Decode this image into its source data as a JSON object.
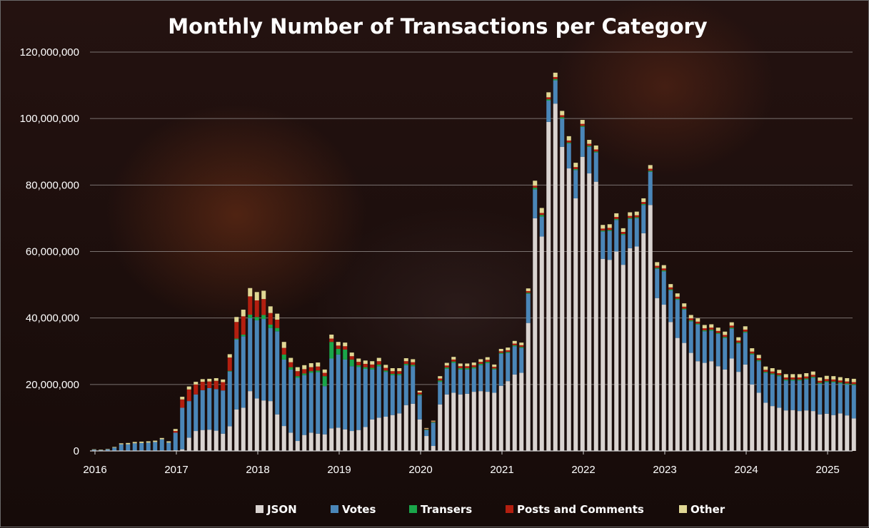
{
  "chart_data": {
    "type": "bar",
    "stacked": true,
    "title": "Monthly Number of Transactions per Category",
    "xlabel": "",
    "ylabel": "",
    "ylim": [
      0,
      120000000
    ],
    "yticks": [
      0,
      20000000,
      40000000,
      60000000,
      80000000,
      100000000,
      120000000
    ],
    "ytick_labels": [
      "0",
      "20,000,000",
      "40,000,000",
      "60,000,000",
      "80,000,000",
      "100,000,000",
      "120,000,000"
    ],
    "xticks": [
      "2016",
      "2017",
      "2018",
      "2019",
      "2020",
      "2021",
      "2022",
      "2023",
      "2024",
      "2025"
    ],
    "grid": true,
    "legend_position": "bottom",
    "start_month": "2016-01",
    "series": [
      {
        "name": "JSON",
        "color": "#d9d3d0",
        "values": [
          0,
          0,
          0,
          0,
          0,
          0,
          0,
          0,
          0,
          0,
          0,
          0,
          200000,
          500000,
          4000000,
          6000000,
          6300000,
          6400000,
          6100000,
          5200000,
          7400000,
          12500000,
          13000000,
          18000000,
          15800000,
          15200000,
          15000000,
          11000000,
          7500000,
          5500000,
          3000000,
          4800000,
          5500000,
          5200000,
          5000000,
          6800000,
          7000000,
          6500000,
          6000000,
          6300000,
          7200000,
          9500000,
          10000000,
          10300000,
          10800000,
          11300000,
          13800000,
          14200000,
          9500000,
          4500000,
          1500000,
          14000000,
          17000000,
          17500000,
          17000000,
          17200000,
          17800000,
          18000000,
          17800000,
          17500000,
          19600000,
          21000000,
          23000000,
          23500000,
          38500000,
          70000000,
          64500000,
          99000000,
          104500000,
          91500000,
          85000000,
          76000000,
          88500000,
          83500000,
          81000000,
          57800000,
          57500000,
          60000000,
          56000000,
          61000000,
          61500000,
          65500000,
          74000000,
          46000000,
          44000000,
          38800000,
          34000000,
          32500000,
          29500000,
          27000000,
          26500000,
          27000000,
          25500000,
          24500000,
          27800000,
          23800000,
          26000000,
          20000000,
          17500000,
          14500000,
          13500000,
          13000000,
          12200000,
          12300000,
          12000000,
          12200000,
          12000000,
          11000000,
          11200000,
          10800000,
          11300000,
          10700000,
          9800000
        ]
      },
      {
        "name": "Votes",
        "color": "#4a86b8",
        "values": [
          400000,
          300000,
          500000,
          1000000,
          2000000,
          2000000,
          2300000,
          2400000,
          2500000,
          2700000,
          3500000,
          2500000,
          5300000,
          12500000,
          11000000,
          11000000,
          12000000,
          12500000,
          12500000,
          13000000,
          16500000,
          21000000,
          21500000,
          22000000,
          23500000,
          24500000,
          22000000,
          25000000,
          20000000,
          19000000,
          19000000,
          18000000,
          18000000,
          18500000,
          14500000,
          21000000,
          22000000,
          21000000,
          19500000,
          19000000,
          17500000,
          15000000,
          15500000,
          13500000,
          12000000,
          11500000,
          12000000,
          11300000,
          7200000,
          1800000,
          7000000,
          6800000,
          7700000,
          9000000,
          7500000,
          7300000,
          7000000,
          7800000,
          8600000,
          7000000,
          9600000,
          8500000,
          8500000,
          7500000,
          8800000,
          8700000,
          6000000,
          6400000,
          7000000,
          8500000,
          7500000,
          8500000,
          9000000,
          8000000,
          8800000,
          8200000,
          8700000,
          9500000,
          9000000,
          8800000,
          8500000,
          8500000,
          10000000,
          8800000,
          10000000,
          9500000,
          11500000,
          10000000,
          9500000,
          11000000,
          9500000,
          9200000,
          9700000,
          9500000,
          9000000,
          8500000,
          9600000,
          9000000,
          9500000,
          9000000,
          9500000,
          9500000,
          9000000,
          8900000,
          9200000,
          9300000,
          10000000,
          9200000,
          9500000,
          9800000,
          9000000,
          9300000,
          10000000
        ]
      },
      {
        "name": "Transers",
        "color": "#1aa64a",
        "values": [
          0,
          0,
          0,
          0,
          0,
          0,
          0,
          0,
          0,
          0,
          0,
          0,
          0,
          0,
          0,
          0,
          0,
          0,
          0,
          0,
          200000,
          300000,
          500000,
          1000000,
          1000000,
          1200000,
          1000000,
          1000000,
          1500000,
          700000,
          500000,
          500000,
          500000,
          500000,
          3000000,
          5000000,
          1700000,
          3000000,
          2000000,
          500000,
          500000,
          500000,
          500000,
          400000,
          400000,
          400000,
          400000,
          400000,
          300000,
          200000,
          200000,
          400000,
          400000,
          400000,
          400000,
          400000,
          400000,
          400000,
          400000,
          300000,
          300000,
          300000,
          300000,
          300000,
          300000,
          500000,
          500000,
          400000,
          400000,
          400000,
          300000,
          300000,
          300000,
          300000,
          300000,
          300000,
          300000,
          300000,
          300000,
          300000,
          300000,
          300000,
          300000,
          300000,
          300000,
          300000,
          300000,
          300000,
          300000,
          300000,
          300000,
          300000,
          300000,
          300000,
          300000,
          300000,
          300000,
          300000,
          300000,
          300000,
          300000,
          300000,
          300000,
          300000,
          300000,
          300000,
          300000,
          300000,
          300000,
          300000,
          300000,
          300000,
          300000
        ]
      },
      {
        "name": "Posts and Comments",
        "color": "#b31f10",
        "values": [
          0,
          0,
          0,
          0,
          0,
          0,
          0,
          0,
          0,
          0,
          0,
          0,
          500000,
          2500000,
          3500000,
          3000000,
          2500000,
          2000000,
          2500000,
          2500000,
          4000000,
          5000000,
          5500000,
          5500000,
          5000000,
          4800000,
          3500000,
          2500000,
          2000000,
          1500000,
          1500000,
          1300000,
          1200000,
          1200000,
          1000000,
          1000000,
          1000000,
          1000000,
          1000000,
          1000000,
          1000000,
          1000000,
          1000000,
          800000,
          800000,
          800000,
          800000,
          800000,
          600000,
          200000,
          200000,
          600000,
          600000,
          600000,
          600000,
          600000,
          600000,
          600000,
          600000,
          500000,
          500000,
          500000,
          500000,
          500000,
          500000,
          600000,
          600000,
          600000,
          600000,
          600000,
          600000,
          600000,
          600000,
          600000,
          600000,
          600000,
          600000,
          600000,
          600000,
          600000,
          600000,
          600000,
          600000,
          600000,
          600000,
          600000,
          600000,
          600000,
          600000,
          600000,
          600000,
          600000,
          600000,
          600000,
          600000,
          600000,
          600000,
          600000,
          600000,
          600000,
          600000,
          600000,
          600000,
          600000,
          600000,
          600000,
          600000,
          600000,
          600000,
          600000,
          600000,
          600000,
          600000
        ]
      },
      {
        "name": "Other",
        "color": "#e0d794",
        "values": [
          100000,
          100000,
          100000,
          200000,
          300000,
          400000,
          400000,
          400000,
          400000,
          400000,
          400000,
          400000,
          600000,
          800000,
          900000,
          800000,
          800000,
          800000,
          800000,
          800000,
          1000000,
          1500000,
          2000000,
          2500000,
          2500000,
          2500000,
          2000000,
          1800000,
          1800000,
          1300000,
          1200000,
          1200000,
          1200000,
          1200000,
          1000000,
          1200000,
          1100000,
          1100000,
          1100000,
          1000000,
          1000000,
          1000000,
          1000000,
          900000,
          900000,
          900000,
          900000,
          900000,
          500000,
          200000,
          200000,
          700000,
          800000,
          800000,
          800000,
          800000,
          800000,
          800000,
          800000,
          700000,
          700000,
          800000,
          800000,
          800000,
          800000,
          1500000,
          1500000,
          1500000,
          1300000,
          1300000,
          1300000,
          1300000,
          1200000,
          1200000,
          1200000,
          1100000,
          1100000,
          1100000,
          1100000,
          1100000,
          1100000,
          1100000,
          1100000,
          1100000,
          1000000,
          1000000,
          1000000,
          1000000,
          1000000,
          1000000,
          1000000,
          1000000,
          1000000,
          1000000,
          1000000,
          1000000,
          1000000,
          1000000,
          1000000,
          1000000,
          1000000,
          1000000,
          1000000,
          1000000,
          1000000,
          1000000,
          1000000,
          1000000,
          1000000,
          1000000,
          1000000,
          1000000,
          1000000
        ]
      }
    ]
  }
}
